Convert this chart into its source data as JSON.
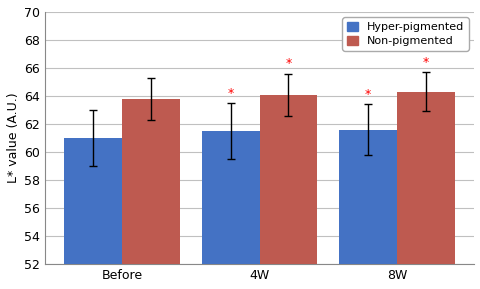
{
  "categories": [
    "Before",
    "4W",
    "8W"
  ],
  "hyper_values": [
    61.0,
    61.5,
    61.6
  ],
  "nonpig_values": [
    63.8,
    64.1,
    64.3
  ],
  "hyper_errors": [
    2.0,
    2.0,
    1.8
  ],
  "nonpig_errors": [
    1.5,
    1.5,
    1.4
  ],
  "hyper_color": "#4472C4",
  "nonpig_color": "#BE5A50",
  "bar_width": 0.42,
  "ylim": [
    52,
    70
  ],
  "yticks": [
    52,
    54,
    56,
    58,
    60,
    62,
    64,
    66,
    68,
    70
  ],
  "ylabel": "L* value (A.U.)",
  "legend_hyper": "Hyper-pigmented",
  "legend_nonpig": "Non-pigmented",
  "sig_color": "#FF0000",
  "background_color": "#FFFFFF",
  "grid_color": "#C0C0C0"
}
